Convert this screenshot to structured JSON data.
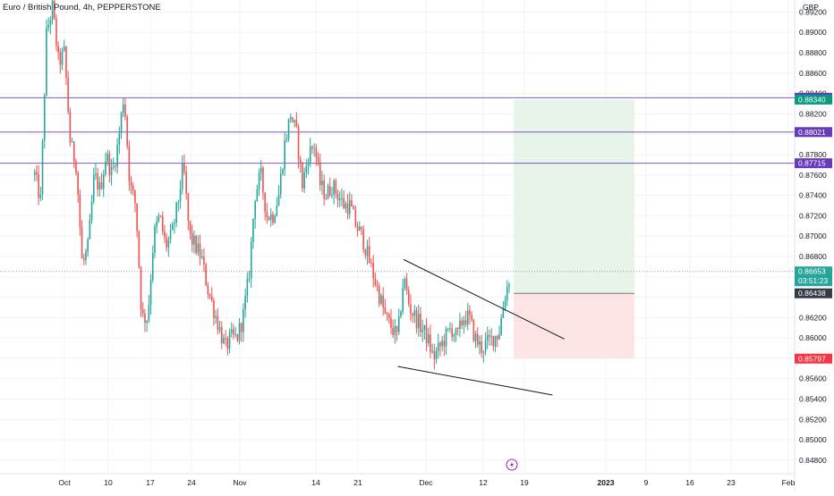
{
  "header": {
    "title": "Euro / British Pound, 4h, PEPPERSTONE"
  },
  "colors": {
    "up": "#26a69a",
    "down": "#ef5350",
    "hline": "#7e57c2",
    "grid": "#f0f3fa",
    "axis_text": "#131722",
    "target_zone": "#e6f4e9",
    "stop_zone": "#fde4e4",
    "badge_purple": "#673ab7",
    "badge_green": "#089981",
    "badge_red": "#f23645",
    "badge_dark": "#363a45",
    "badge_price": "#26a69a"
  },
  "icons": {
    "event_marker": "lightning-icon"
  },
  "chart_data": {
    "type": "candlestick",
    "title": "Euro / British Pound, 4h, PEPPERSTONE",
    "currency_label": "GBP",
    "y_axis": {
      "range": [
        0.8465,
        0.893
      ],
      "ticks": [
        "0.89200",
        "0.89000",
        "0.88800",
        "0.88600",
        "0.88400",
        "0.88200",
        "0.87800",
        "0.87600",
        "0.87400",
        "0.87200",
        "0.87000",
        "0.86800",
        "0.86200",
        "0.86000",
        "0.85600",
        "0.85400",
        "0.85200",
        "0.85000",
        "0.84800"
      ]
    },
    "x_axis": {
      "labels": [
        {
          "text": "Oct",
          "bold": false
        },
        {
          "text": "10",
          "bold": false
        },
        {
          "text": "17",
          "bold": false
        },
        {
          "text": "24",
          "bold": false
        },
        {
          "text": "Nov",
          "bold": false
        },
        {
          "text": "14",
          "bold": false
        },
        {
          "text": "21",
          "bold": false
        },
        {
          "text": "Dec",
          "bold": false
        },
        {
          "text": "12",
          "bold": false
        },
        {
          "text": "19",
          "bold": false
        },
        {
          "text": "2023",
          "bold": true
        },
        {
          "text": "9",
          "bold": false
        },
        {
          "text": "16",
          "bold": false
        },
        {
          "text": "23",
          "bold": false
        },
        {
          "text": "Feb",
          "bold": false
        }
      ]
    },
    "horizontal_lines": [
      0.88358,
      0.88021,
      0.87715
    ],
    "price_badges": [
      {
        "label": "0.88358",
        "value": 0.88358,
        "color": "badge_purple"
      },
      {
        "label": "0.88340",
        "value": 0.8834,
        "color": "badge_green"
      },
      {
        "label": "0.88021",
        "value": 0.88021,
        "color": "badge_purple"
      },
      {
        "label": "0.87715",
        "value": 0.87715,
        "color": "badge_purple"
      },
      {
        "label": "0.86653",
        "value": 0.86653,
        "color": "badge_price",
        "sublabel": "03:51:23"
      },
      {
        "label": "0.86438",
        "value": 0.86438,
        "color": "badge_dark"
      },
      {
        "label": "0.85797",
        "value": 0.85797,
        "color": "badge_red"
      }
    ],
    "last_price": 0.86653,
    "position": {
      "entry": 0.86438,
      "target": 0.8834,
      "stop": 0.85797,
      "x_start_label": "16",
      "x_end_label": "9"
    },
    "trendlines": [
      {
        "from": {
          "x": "Nov 29",
          "y": 0.8677
        },
        "to": {
          "x": "Dec 26",
          "y": 0.8599
        }
      },
      {
        "from": {
          "x": "Nov 28",
          "y": 0.8572
        },
        "to": {
          "x": "Dec 24",
          "y": 0.8544
        }
      }
    ],
    "price_path": [
      [
        "Sep 28",
        0.876
      ],
      [
        "Sep 29",
        0.8735
      ],
      [
        "Sep 30",
        0.89
      ],
      [
        "Oct 1",
        0.8925
      ],
      [
        "Oct 2",
        0.887
      ],
      [
        "Oct 3",
        0.888
      ],
      [
        "Oct 4",
        0.879
      ],
      [
        "Oct 5",
        0.877
      ],
      [
        "Oct 6",
        0.867
      ],
      [
        "Oct 7",
        0.869
      ],
      [
        "Oct 8",
        0.876
      ],
      [
        "Oct 9",
        0.8745
      ],
      [
        "Oct 10",
        0.878
      ],
      [
        "Oct 11",
        0.876
      ],
      [
        "Oct 12",
        0.879
      ],
      [
        "Oct 13",
        0.884
      ],
      [
        "Oct 14",
        0.875
      ],
      [
        "Oct 15",
        0.873
      ],
      [
        "Oct 16",
        0.862
      ],
      [
        "Oct 17",
        0.862
      ],
      [
        "Oct 18",
        0.87
      ],
      [
        "Oct 19",
        0.872
      ],
      [
        "Oct 20",
        0.869
      ],
      [
        "Oct 21",
        0.87
      ],
      [
        "Oct 22",
        0.873
      ],
      [
        "Oct 23",
        0.877
      ],
      [
        "Oct 24",
        0.87
      ],
      [
        "Oct 25",
        0.869
      ],
      [
        "Oct 26",
        0.868
      ],
      [
        "Oct 27",
        0.865
      ],
      [
        "Oct 28",
        0.863
      ],
      [
        "Oct 29",
        0.861
      ],
      [
        "Oct 30",
        0.859
      ],
      [
        "Oct 31",
        0.86
      ],
      [
        "Nov 1",
        0.86
      ],
      [
        "Nov 2",
        0.862
      ],
      [
        "Nov 3",
        0.866
      ],
      [
        "Nov 4",
        0.874
      ],
      [
        "Nov 5",
        0.876
      ],
      [
        "Nov 6",
        0.872
      ],
      [
        "Nov 7",
        0.872
      ],
      [
        "Nov 8",
        0.874
      ],
      [
        "Nov 9",
        0.879
      ],
      [
        "Nov 10",
        0.882
      ],
      [
        "Nov 11",
        0.88
      ],
      [
        "Nov 12",
        0.875
      ],
      [
        "Nov 13",
        0.878
      ],
      [
        "Nov 14",
        0.879
      ],
      [
        "Nov 15",
        0.875
      ],
      [
        "Nov 16",
        0.874
      ],
      [
        "Nov 17",
        0.875
      ],
      [
        "Nov 18",
        0.874
      ],
      [
        "Nov 19",
        0.873
      ],
      [
        "Nov 20",
        0.873
      ],
      [
        "Nov 21",
        0.871
      ],
      [
        "Nov 22",
        0.87
      ],
      [
        "Nov 23",
        0.868
      ],
      [
        "Nov 24",
        0.866
      ],
      [
        "Nov 25",
        0.864
      ],
      [
        "Nov 26",
        0.862
      ],
      [
        "Nov 27",
        0.861
      ],
      [
        "Nov 28",
        0.86
      ],
      [
        "Nov 29",
        0.866
      ],
      [
        "Nov 30",
        0.863
      ],
      [
        "Dec 1",
        0.862
      ],
      [
        "Dec 2",
        0.861
      ],
      [
        "Dec 3",
        0.86
      ],
      [
        "Dec 4",
        0.858
      ],
      [
        "Dec 5",
        0.859
      ],
      [
        "Dec 6",
        0.86
      ],
      [
        "Dec 7",
        0.861
      ],
      [
        "Dec 8",
        0.86
      ],
      [
        "Dec 9",
        0.862
      ],
      [
        "Dec 10",
        0.862
      ],
      [
        "Dec 11",
        0.86
      ],
      [
        "Dec 12",
        0.859
      ],
      [
        "Dec 13",
        0.8595
      ],
      [
        "Dec 14",
        0.86
      ],
      [
        "Dec 15",
        0.8605
      ],
      [
        "Dec 16",
        0.864
      ],
      [
        "Dec 17",
        0.8665
      ]
    ]
  }
}
